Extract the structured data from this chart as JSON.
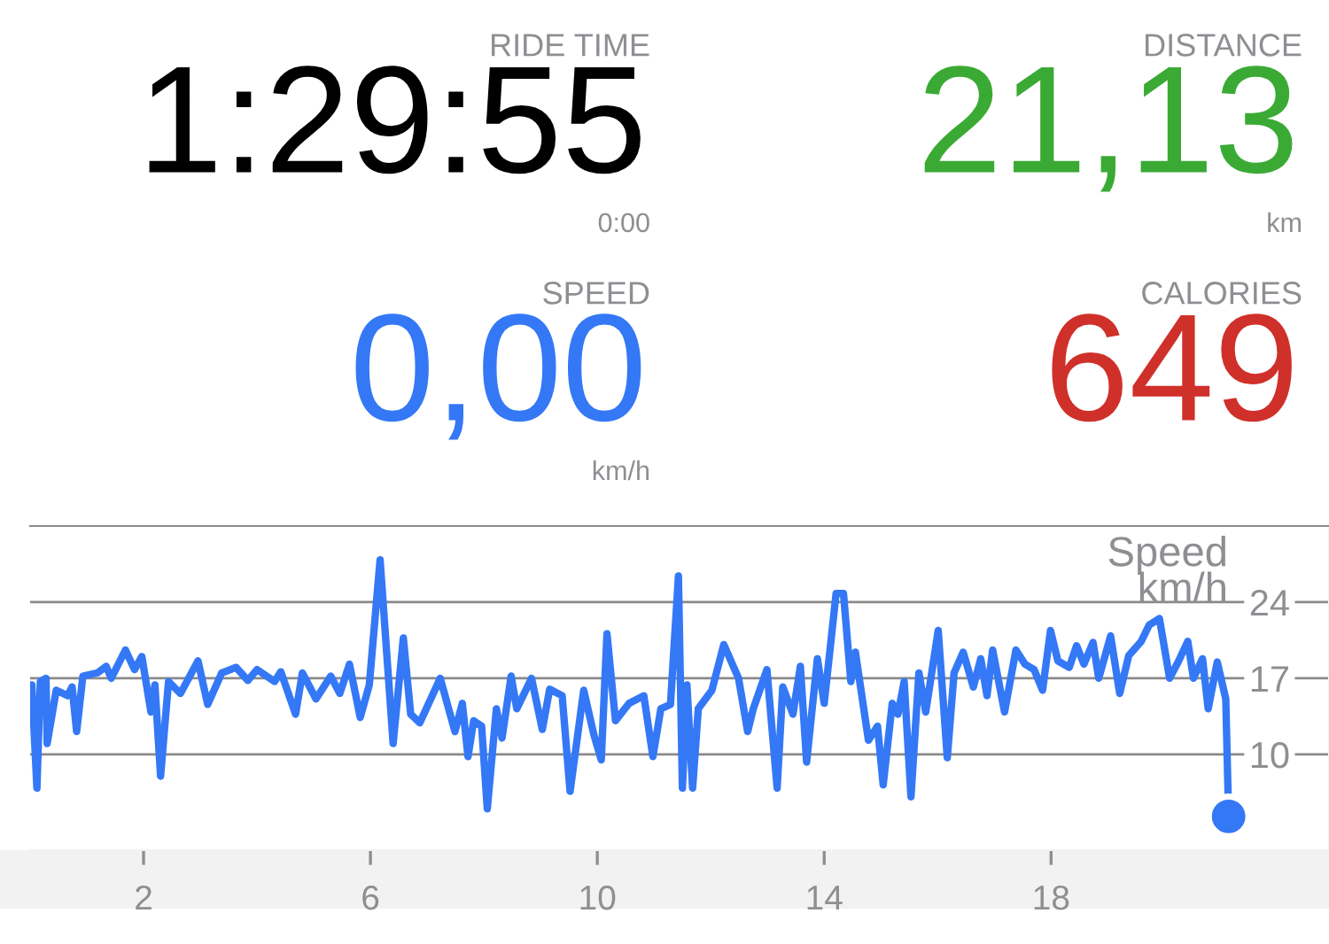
{
  "chart_data": [
    {
      "type": "other",
      "annotations": [
        "RIDE TIME",
        "1:29:55",
        "0:00",
        "DISTANCE",
        "21,13",
        "km",
        "SPEED",
        "0,00",
        "km/h",
        "CALORIES",
        "649"
      ],
      "colors": [
        "#8e8e93",
        "#000000",
        "#8e8e93",
        "#8e8e93",
        "#3aaa35",
        "#8e8e93",
        "#8e8e93",
        "#3478f6",
        "#8e8e93",
        "#8e8e93",
        "#d0302a"
      ]
    },
    {
      "type": "line",
      "ylabel": "Speed\nkm/h",
      "xlim": [
        0,
        22.9
      ],
      "ylim": [
        1.2,
        31
      ],
      "xticks": [
        2,
        6,
        10,
        14,
        18
      ],
      "yticks": [
        10,
        17,
        24
      ],
      "grid": "y",
      "line_style": "solid",
      "series": [
        {
          "type": "line",
          "color": "#3478f6",
          "x": [
            0.03,
            0.12,
            0.18,
            0.28,
            0.3,
            0.46,
            0.66,
            0.74,
            0.82,
            0.93,
            1.19,
            1.34,
            1.43,
            1.68,
            1.84,
            1.97,
            2.13,
            2.2,
            2.3,
            2.44,
            2.65,
            2.96,
            3.13,
            3.38,
            3.63,
            3.84,
            4,
            4.31,
            4.42,
            4.68,
            4.8,
            5.04,
            5.3,
            5.46,
            5.63,
            5.82,
            5.98,
            6.17,
            6.4,
            6.58,
            6.71,
            6.87,
            7.23,
            7.49,
            7.62,
            7.72,
            7.82,
            7.96,
            8.06,
            8.22,
            8.32,
            8.48,
            8.58,
            8.84,
            9.03,
            9.16,
            9.38,
            9.52,
            9.76,
            9.94,
            10.07,
            10.17,
            10.32,
            10.56,
            10.82,
            10.98,
            11.12,
            11.29,
            11.43,
            11.5,
            11.58,
            11.68,
            11.78,
            12.02,
            12.23,
            12.49,
            12.65,
            12.75,
            12.99,
            13.17,
            13.27,
            13.45,
            13.58,
            13.69,
            13.88,
            14,
            14.21,
            14.34,
            14.47,
            14.55,
            14.78,
            14.94,
            15.04,
            15.2,
            15.3,
            15.41,
            15.53,
            15.67,
            15.79,
            16.01,
            16.17,
            16.29,
            16.45,
            16.63,
            16.76,
            16.87,
            16.97,
            17.18,
            17.38,
            17.54,
            17.7,
            17.85,
            17.99,
            18.12,
            18.32,
            18.45,
            18.58,
            18.74,
            18.84,
            19.05,
            19.21,
            19.37,
            19.59,
            19.73,
            19.91,
            20.09,
            20.25,
            20.41,
            20.51,
            20.67,
            20.77,
            20.93,
            21.08,
            21.13
          ],
          "values": [
            16.4,
            6.9,
            16.7,
            17,
            11,
            15.9,
            15.4,
            16.2,
            12.1,
            17.2,
            17.5,
            18.1,
            17,
            19.6,
            17.8,
            19,
            13.9,
            16.4,
            8,
            16.7,
            15.6,
            18.6,
            14.6,
            17.5,
            18,
            16.8,
            17.8,
            16.7,
            17.6,
            13.7,
            17.5,
            15.1,
            17.2,
            15.6,
            18.3,
            13.4,
            16.4,
            27.9,
            11,
            20.7,
            13.7,
            12.9,
            17,
            12.1,
            14.7,
            9.8,
            13.1,
            12.6,
            5,
            14.2,
            11.5,
            17.2,
            14.2,
            17,
            12.3,
            16,
            15.4,
            6.6,
            15.9,
            11.8,
            9.5,
            21.1,
            13.1,
            14.7,
            15.4,
            9.8,
            14.2,
            14.6,
            26.4,
            6.9,
            16.4,
            6.9,
            14.2,
            15.9,
            20.1,
            17,
            12.1,
            14.2,
            17.8,
            6.9,
            16.2,
            13.7,
            18.1,
            9.3,
            18.8,
            14.7,
            24.8,
            24.8,
            16.7,
            19.4,
            11.3,
            12.6,
            7.2,
            14.7,
            13.7,
            16.7,
            6.1,
            17.5,
            13.9,
            21.4,
            9.7,
            17.5,
            19.4,
            16.2,
            18.8,
            15.4,
            19.6,
            13.9,
            19.6,
            18.3,
            17.8,
            15.9,
            21.4,
            18.6,
            18,
            20,
            18.3,
            20.3,
            17,
            20.9,
            15.6,
            19.1,
            20.4,
            21.9,
            22.5,
            17,
            18.6,
            20.4,
            17,
            18.8,
            14.2,
            18.5,
            15.1,
            4.3
          ]
        },
        {
          "type": "scatter",
          "color": "#3478f6",
          "marker": "circle",
          "x": [
            21.13
          ],
          "values": [
            4.3
          ]
        }
      ]
    }
  ]
}
